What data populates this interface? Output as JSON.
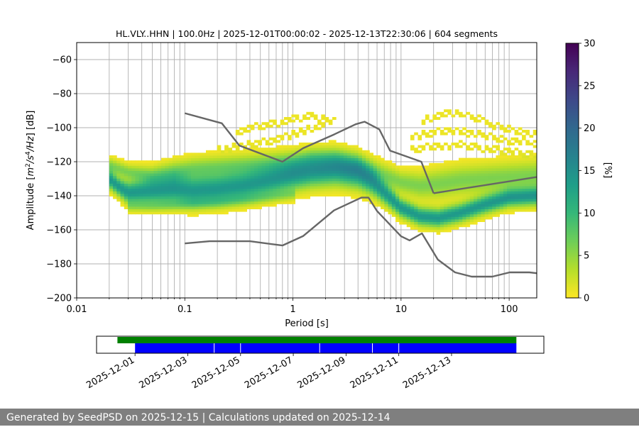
{
  "colors": {
    "noise_model": "#666666",
    "grid": "#b0b0b0",
    "coverage_data": "#008000",
    "coverage_gaps": "#0000ff",
    "footer_bg": "#7f7f7f",
    "colormap": [
      "#fde725",
      "#b5de2b",
      "#6ece58",
      "#35b779",
      "#1f9e89",
      "#26828e",
      "#31688e",
      "#3e4989",
      "#482878",
      "#440154"
    ]
  },
  "chart_data": [
    {
      "type": "heatmap",
      "title": "HL.VLY..HHN | 100.0Hz | 2025-12-01T00:00:02 - 2025-12-13T22:30:06 | 604 segments",
      "xlabel": "Period [s]",
      "ylabel_parts": [
        "Amplitude [",
        "m",
        "2",
        "/",
        "s",
        "4",
        "/",
        "Hz",
        "] [dB]"
      ],
      "x_scale": "log",
      "xlim": [
        0.01,
        180
      ],
      "ylim": [
        -200,
        -50
      ],
      "x_ticks": [
        {
          "value": 0.01,
          "label": "0.01"
        },
        {
          "value": 0.1,
          "label": "0.1"
        },
        {
          "value": 1,
          "label": "1"
        },
        {
          "value": 10,
          "label": "10"
        },
        {
          "value": 100,
          "label": "100"
        }
      ],
      "y_ticks": [
        {
          "value": -60,
          "label": "−60"
        },
        {
          "value": -80,
          "label": "−80"
        },
        {
          "value": -100,
          "label": "−100"
        },
        {
          "value": -120,
          "label": "−120"
        },
        {
          "value": -140,
          "label": "−140"
        },
        {
          "value": -160,
          "label": "−160"
        },
        {
          "value": -180,
          "label": "−180"
        },
        {
          "value": -200,
          "label": "−200"
        }
      ],
      "grid": true,
      "period_range": [
        0.02,
        180
      ],
      "density_ridges": [
        {
          "name": "main",
          "periods": [
            0.02,
            0.025,
            0.03,
            0.05,
            0.08,
            0.12,
            0.2,
            0.35,
            0.6,
            1.0,
            1.5,
            2.5,
            4,
            5.5,
            7,
            10,
            15,
            22,
            35,
            60,
            100,
            180
          ],
          "amp": [
            -130,
            -135,
            -138,
            -137,
            -136,
            -137,
            -136,
            -134,
            -131,
            -128,
            -126,
            -125,
            -127,
            -132,
            -138,
            -147,
            -152,
            -153,
            -150,
            -145,
            -141,
            -140
          ],
          "width": [
            5,
            5,
            6,
            7,
            8,
            8,
            8,
            8,
            8,
            8,
            8,
            8,
            8,
            7,
            6,
            5,
            5,
            5,
            5,
            5,
            5,
            5
          ],
          "peak": 14
        },
        {
          "name": "upper",
          "periods": [
            0.02,
            0.03,
            0.05,
            0.08,
            0.12,
            0.2,
            0.35,
            0.6,
            1.0,
            1.5,
            2.5,
            4,
            6,
            10,
            15,
            22,
            35,
            60,
            100,
            180
          ],
          "amp": [
            -122,
            -126,
            -128,
            -126,
            -124,
            -123,
            -122,
            -121,
            -120,
            -118,
            -118,
            -121,
            -126,
            -132,
            -134,
            -133,
            -131,
            -130,
            -129,
            -128
          ],
          "width": [
            4,
            4,
            5,
            6,
            6,
            6,
            6,
            6,
            6,
            6,
            6,
            6,
            6,
            6,
            7,
            8,
            8,
            8,
            8,
            8
          ],
          "peak": 6
        },
        {
          "name": "lower",
          "periods": [
            0.03,
            0.05,
            0.1,
            0.2,
            0.4,
            0.7,
            1.0
          ],
          "amp": [
            -146,
            -146,
            -145,
            -144,
            -142,
            -140,
            -139
          ],
          "width": [
            3,
            3,
            3,
            3,
            3,
            3,
            3
          ],
          "peak": 4
        }
      ],
      "density_scatter": [
        {
          "periods": [
            0.2,
            0.4,
            0.7,
            1.0,
            1.5,
            2.0
          ],
          "amp": [
            -113,
            -110,
            -107,
            -104,
            -100,
            -98
          ]
        },
        {
          "periods": [
            0.3,
            0.6,
            1.0,
            1.5,
            2.5
          ],
          "amp": [
            -102,
            -98,
            -95,
            -93,
            -96
          ]
        },
        {
          "periods": [
            15,
            20,
            30,
            45,
            70,
            110,
            180
          ],
          "amp": [
            -97,
            -93,
            -91,
            -93,
            -98,
            -102,
            -104
          ]
        },
        {
          "periods": [
            12,
            18,
            28,
            45,
            70,
            110,
            180
          ],
          "amp": [
            -106,
            -103,
            -102,
            -103,
            -106,
            -108,
            -109
          ]
        },
        {
          "periods": [
            12,
            20,
            35,
            60,
            100,
            180
          ],
          "amp": [
            -113,
            -111,
            -110,
            -112,
            -114,
            -116
          ]
        }
      ],
      "noise_models": [
        {
          "name": "high",
          "periods": [
            0.1,
            0.17,
            0.22,
            0.32,
            0.8,
            1.24,
            2.4,
            3.8,
            4.6,
            6.3,
            7.9,
            15.4,
            20
          ],
          "values": [
            -91.5,
            -95.5,
            -97.4,
            -110.5,
            -120,
            -112.1,
            -104,
            -98,
            -96.5,
            -101,
            -113.5,
            -120,
            -138.5
          ]
        },
        {
          "name": "high-long",
          "periods": [
            20,
            180
          ],
          "values": [
            -138.5,
            -129
          ]
        },
        {
          "name": "low",
          "periods": [
            0.1,
            0.17,
            0.4,
            0.8,
            1.24,
            2.4,
            4.3,
            5.0,
            6.0,
            10,
            12,
            15.6,
            21.9,
            31.6,
            45,
            70,
            101,
            154,
            180
          ],
          "values": [
            -168,
            -166.7,
            -166.7,
            -169.2,
            -163.7,
            -148.6,
            -141.1,
            -141.1,
            -149,
            -163.8,
            -166.2,
            -162.1,
            -177.5,
            -185,
            -187.5,
            -187.5,
            -185,
            -185,
            -185.5
          ]
        }
      ],
      "colorbar": {
        "label": "[%]",
        "range": [
          0,
          30
        ],
        "ticks": [
          {
            "value": 0,
            "label": "0"
          },
          {
            "value": 5,
            "label": "5"
          },
          {
            "value": 10,
            "label": "10"
          },
          {
            "value": 15,
            "label": "15"
          },
          {
            "value": 20,
            "label": "20"
          },
          {
            "value": 25,
            "label": "25"
          },
          {
            "value": 30,
            "label": "30"
          }
        ]
      }
    },
    {
      "type": "timeline",
      "date_range": [
        "2025-11-29T13:00",
        "2025-12-16T12:00"
      ],
      "x_ticks": [
        "2025-12-01",
        "2025-12-03",
        "2025-12-05",
        "2025-12-07",
        "2025-12-09",
        "2025-12-11",
        "2025-12-13"
      ],
      "data_coverage": {
        "start": "2025-11-30T08:00",
        "end": "2025-12-15T11:00"
      },
      "psd_coverage": {
        "start": "2025-12-01T00:00",
        "end": "2025-12-15T11:00",
        "gaps": [
          "2025-12-04T00:00",
          "2025-12-05T00:00",
          "2025-12-08T00:00",
          "2025-12-10T00:00",
          "2025-12-11T00:00"
        ]
      }
    }
  ],
  "footer": {
    "text": "Generated by SeedPSD on 2025-12-15 | Calculations updated on 2025-12-14"
  }
}
